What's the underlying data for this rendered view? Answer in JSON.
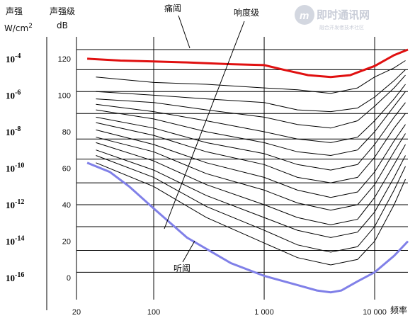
{
  "chart_data": {
    "type": "line",
    "x_scale": "log",
    "xlim": [
      20,
      20000
    ],
    "ylim": [
      -12,
      132
    ],
    "x_ticks": [
      {
        "value": 20,
        "label": "20"
      },
      {
        "value": 100,
        "label": "100"
      },
      {
        "value": 1000,
        "label": "1 000"
      },
      {
        "value": 10000,
        "label": "10 000"
      }
    ],
    "xlabel": "频率",
    "left_axis_label": [
      "声强",
      "W/cm2"
    ],
    "right_axis_label": [
      "声强级",
      "dB"
    ],
    "y_ticks_db": [
      120,
      100,
      80,
      60,
      40,
      20,
      0
    ],
    "y_ticks_intensity": [
      {
        "db": 120,
        "base": "10",
        "exp": "-4"
      },
      {
        "db": 100,
        "base": "10",
        "exp": "-6"
      },
      {
        "db": 80,
        "base": "10",
        "exp": "-8"
      },
      {
        "db": 60,
        "base": "10",
        "exp": "-10"
      },
      {
        "db": 40,
        "base": "10",
        "exp": "-12"
      },
      {
        "db": 20,
        "base": "10",
        "exp": "-14"
      },
      {
        "db": 0,
        "base": "10",
        "exp": "-16"
      }
    ],
    "h_grid_db": [
      125,
      114,
      102,
      90,
      76,
      65,
      52,
      40,
      28,
      15,
      3
    ],
    "v_grid_hz": [
      100,
      1000,
      10000
    ],
    "annotations": [
      {
        "text": "痛阈"
      },
      {
        "text": "响度级"
      },
      {
        "text": "听阈"
      }
    ],
    "pain_threshold": {
      "name": "痛阈",
      "color": "#e01010",
      "x": [
        25,
        50,
        100,
        200,
        500,
        1000,
        1500,
        2500,
        4000,
        6000,
        10000,
        15000,
        20000
      ],
      "y": [
        120,
        119,
        118.5,
        118,
        117,
        116.5,
        114,
        111,
        110,
        111,
        116,
        122,
        125
      ]
    },
    "hearing_threshold": {
      "name": "听阈",
      "color": "#8080e8",
      "x": [
        25,
        40,
        60,
        100,
        200,
        500,
        1000,
        2000,
        3000,
        4000,
        5000,
        7000,
        10000,
        15000,
        20000
      ],
      "y": [
        63,
        58,
        50,
        38,
        22,
        8,
        1,
        -4,
        -7,
        -8,
        -7,
        -2,
        3,
        12,
        20
      ]
    },
    "loudness_curves": [
      {
        "x": [
          30,
          100,
          300,
          1000,
          2000,
          4000,
          7000,
          10000,
          15000,
          19000
        ],
        "y": [
          110,
          107,
          106,
          104,
          103,
          101,
          104,
          110,
          115,
          119
        ]
      },
      {
        "x": [
          30,
          100,
          300,
          1000,
          2000,
          4000,
          7000,
          10000,
          15000,
          19000
        ],
        "y": [
          102,
          100,
          98,
          96,
          92,
          91,
          93,
          99,
          108,
          114
        ]
      },
      {
        "x": [
          30,
          100,
          300,
          1000,
          2000,
          4000,
          7000,
          10000,
          15000,
          19000
        ],
        "y": [
          98,
          96,
          92,
          88,
          84,
          82,
          86,
          94,
          104,
          111
        ]
      },
      {
        "x": [
          30,
          100,
          300,
          1000,
          2000,
          4000,
          7000,
          10000,
          15000,
          19000
        ],
        "y": [
          95,
          91,
          86,
          80,
          76,
          74,
          77,
          86,
          98,
          106
        ]
      },
      {
        "x": [
          30,
          100,
          300,
          1000,
          2000,
          4000,
          7000,
          10000,
          15000,
          19000
        ],
        "y": [
          92,
          87,
          80,
          74,
          69,
          67,
          70,
          80,
          94,
          102
        ]
      },
      {
        "x": [
          30,
          100,
          300,
          1000,
          2000,
          4000,
          7000,
          10000,
          15000,
          19000
        ],
        "y": [
          88,
          82,
          74,
          68,
          62,
          59,
          62,
          73,
          88,
          96
        ]
      },
      {
        "x": [
          30,
          100,
          300,
          1000,
          2000,
          4000,
          7000,
          10000,
          15000,
          19000
        ],
        "y": [
          85,
          78,
          69,
          62,
          55,
          52,
          55,
          66,
          82,
          90
        ]
      },
      {
        "x": [
          30,
          100,
          300,
          1000,
          2000,
          4000,
          7000,
          10000,
          15000,
          19000
        ],
        "y": [
          81,
          73,
          63,
          55,
          48,
          44,
          47,
          58,
          75,
          84
        ]
      },
      {
        "x": [
          30,
          100,
          300,
          1000,
          2000,
          4000,
          7000,
          10000,
          15000,
          19000
        ],
        "y": [
          77,
          69,
          57,
          48,
          41,
          37,
          40,
          51,
          69,
          79
        ]
      },
      {
        "x": [
          30,
          100,
          300,
          1000,
          2000,
          4000,
          7000,
          10000,
          15000,
          19000
        ],
        "y": [
          74,
          64,
          51,
          40,
          33,
          29,
          32,
          44,
          62,
          73
        ]
      },
      {
        "x": [
          30,
          100,
          300,
          1000,
          2000,
          4000,
          7000,
          10000,
          15000,
          19000
        ],
        "y": [
          70,
          59,
          45,
          33,
          26,
          22,
          25,
          36,
          55,
          67
        ]
      },
      {
        "x": [
          30,
          100,
          300,
          1000,
          2000,
          4000,
          7000,
          10000,
          15000,
          19000
        ],
        "y": [
          67,
          55,
          39,
          26,
          18,
          14,
          17,
          28,
          48,
          61
        ]
      },
      {
        "x": [
          30,
          100,
          300,
          1000,
          2000,
          4000,
          7000,
          10000,
          15000,
          19000
        ],
        "y": [
          63,
          50,
          33,
          19,
          11,
          7,
          10,
          20,
          40,
          54
        ]
      }
    ]
  },
  "watermark": {
    "title": "即时通讯网",
    "subtitle": "融合开发者技术社区"
  }
}
